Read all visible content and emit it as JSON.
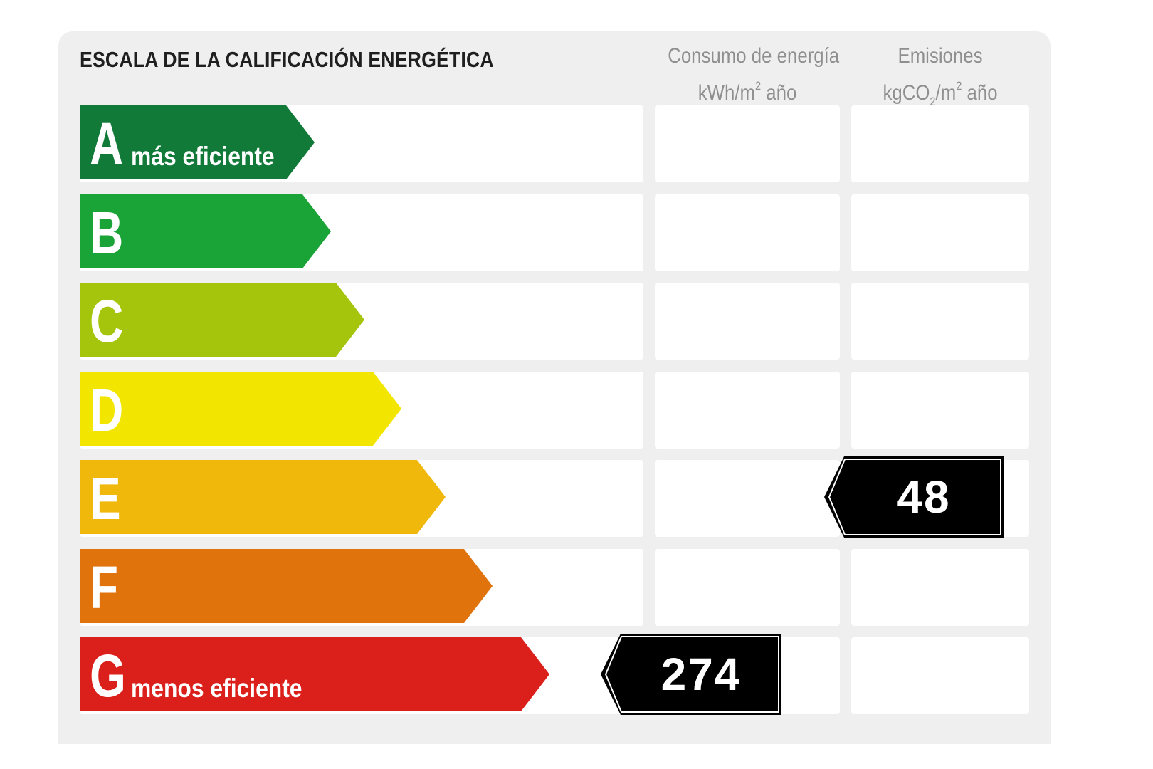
{
  "chart_data": {
    "type": "table",
    "title": "ESCALA DE LA CALIFICACIÓN ENERGÉTICA",
    "columns": {
      "energy": {
        "label": "Consumo de energía",
        "unit_pre": "kWh/m",
        "unit_sup": "2",
        "unit_post": " año"
      },
      "emissions": {
        "label": "Emisiones",
        "unit_pre": "kgCO",
        "unit_sub": "2",
        "unit_mid": "/m",
        "unit_sup": "2",
        "unit_post": " año"
      }
    },
    "classes": [
      {
        "letter": "A",
        "description": "más eficiente",
        "color": "#117a38"
      },
      {
        "letter": "B",
        "description": "",
        "color": "#1aa336"
      },
      {
        "letter": "C",
        "description": "",
        "color": "#a5c50d"
      },
      {
        "letter": "D",
        "description": "",
        "color": "#f2e600"
      },
      {
        "letter": "E",
        "description": "",
        "color": "#f0b80a"
      },
      {
        "letter": "F",
        "description": "",
        "color": "#e0730c"
      },
      {
        "letter": "G",
        "description": "menos eficiente",
        "color": "#db1f1a"
      }
    ],
    "ratings": [
      {
        "column": "energy",
        "class": "G",
        "value": 274
      },
      {
        "column": "emissions",
        "class": "E",
        "value": 48
      }
    ],
    "indicator_color": "#000000"
  }
}
